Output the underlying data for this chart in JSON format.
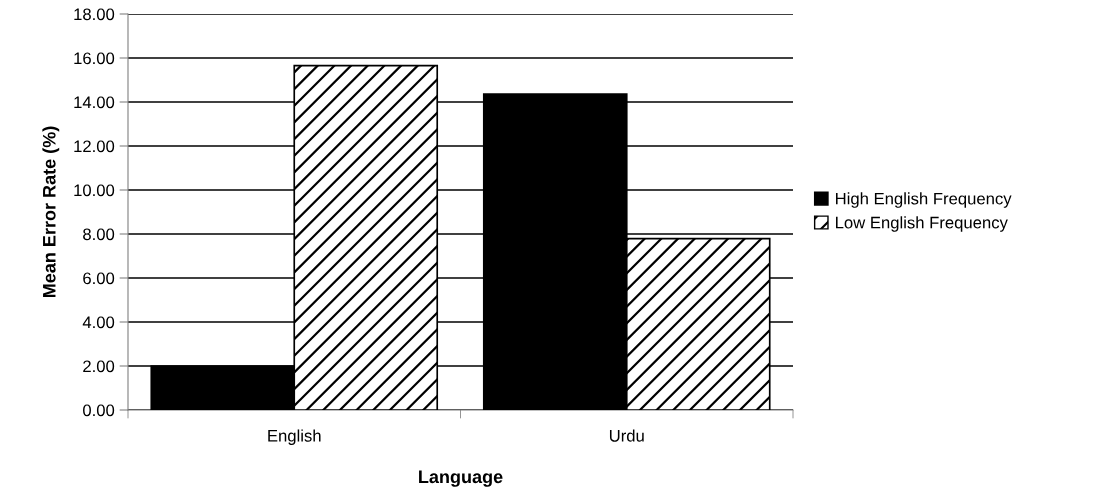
{
  "chart_data": {
    "type": "bar",
    "xlabel": "Language",
    "ylabel": "Mean Error Rate (%)",
    "categories": [
      "English",
      "Urdu"
    ],
    "series": [
      {
        "name": "High English Frequency",
        "color": "#000000",
        "values": [
          2.0,
          14.36
        ]
      },
      {
        "name": "Low English Frequency",
        "color": "#ffffff",
        "values": [
          15.65,
          7.79
        ]
      }
    ],
    "ylim": [
      0,
      18
    ],
    "yticks": [
      {
        "value": 0,
        "label": "0.00"
      },
      {
        "value": 2,
        "label": "2.00"
      },
      {
        "value": 4,
        "label": "4.00"
      },
      {
        "value": 6,
        "label": "6.00"
      },
      {
        "value": 8,
        "label": "8.00"
      },
      {
        "value": 10,
        "label": "10.00"
      },
      {
        "value": 12,
        "label": "12.00"
      },
      {
        "value": 14,
        "label": "14.00"
      },
      {
        "value": 16,
        "label": "16.00"
      },
      {
        "value": 18,
        "label": "18.00"
      }
    ],
    "grid": "y",
    "legend": "right"
  }
}
